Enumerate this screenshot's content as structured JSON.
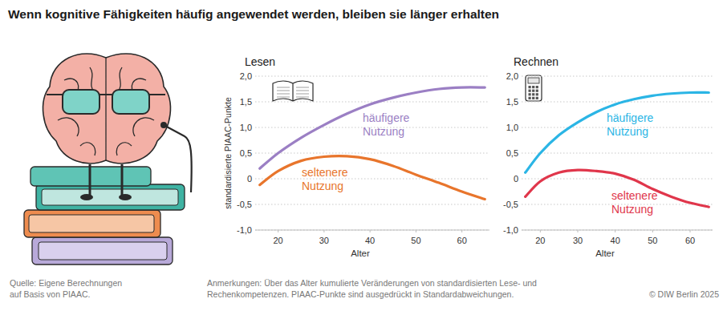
{
  "title": "Wenn kognitive Fähigkeiten häufig angewendet werden, bleiben sie länger erhalten",
  "source": [
    "Quelle: Eigene Berechnungen",
    "auf Basis von PIAAC."
  ],
  "notes": [
    "Anmerkungen: Über das Alter kumulierte Veränderungen von standardisierten Lese- und",
    "Rechenkompetenzen. PIAAC-Punkte sind ausgedrückt in Standardabweichungen."
  ],
  "copyright": "© DIW Berlin 2025",
  "chart_data": [
    {
      "type": "line",
      "title": "Lesen",
      "x_label": "Alter",
      "y_label": "standardisierte PIAAC-Punkte",
      "x": [
        16,
        20,
        25,
        30,
        35,
        40,
        45,
        50,
        55,
        60,
        65
      ],
      "series": [
        {
          "name": "häufigere Nutzung",
          "color": "#9b7fc4",
          "values": [
            0.2,
            0.5,
            0.8,
            1.05,
            1.27,
            1.45,
            1.58,
            1.68,
            1.75,
            1.78,
            1.78
          ]
        },
        {
          "name": "seltenere Nutzung",
          "color": "#e8752c",
          "values": [
            -0.12,
            0.15,
            0.35,
            0.43,
            0.44,
            0.38,
            0.25,
            0.08,
            -0.08,
            -0.25,
            -0.4
          ]
        }
      ],
      "xlim": [
        15,
        66
      ],
      "xticks": [
        20,
        30,
        40,
        50,
        60
      ],
      "ylim": [
        -1,
        2
      ],
      "yticks": [
        {
          "value": 2,
          "label": "2,0"
        },
        {
          "value": 1.5,
          "label": "1,5"
        },
        {
          "value": 1,
          "label": "1,0"
        },
        {
          "value": 0.5,
          "label": "0,5"
        },
        0,
        {
          "value": -0.5,
          "label": "-0,5"
        },
        {
          "value": -1,
          "label": "-1,0"
        }
      ],
      "grid": true
    },
    {
      "type": "line",
      "title": "Rechnen",
      "x_label": "Alter",
      "x": [
        16,
        20,
        25,
        30,
        35,
        40,
        45,
        50,
        55,
        60,
        65
      ],
      "series": [
        {
          "name": "häufigere Nutzung",
          "color": "#2bb5e5",
          "values": [
            0.12,
            0.5,
            0.85,
            1.1,
            1.3,
            1.45,
            1.55,
            1.62,
            1.66,
            1.68,
            1.68
          ]
        },
        {
          "name": "seltenere Nutzung",
          "color": "#e0364b",
          "values": [
            -0.35,
            -0.05,
            0.12,
            0.17,
            0.15,
            0.1,
            -0.02,
            -0.2,
            -0.35,
            -0.47,
            -0.55
          ]
        }
      ],
      "xlim": [
        15,
        66
      ],
      "xticks": [
        20,
        30,
        40,
        50,
        60
      ],
      "ylim": [
        -1,
        2
      ],
      "yticks": [
        {
          "value": 2,
          "label": "2,0"
        },
        {
          "value": 1.5,
          "label": "1,5"
        },
        {
          "value": 1,
          "label": "1,0"
        },
        {
          "value": 0.5,
          "label": "0,5"
        },
        0,
        {
          "value": -0.5,
          "label": "-0,5"
        },
        {
          "value": -1,
          "label": "-1,0"
        }
      ],
      "grid": true
    }
  ]
}
